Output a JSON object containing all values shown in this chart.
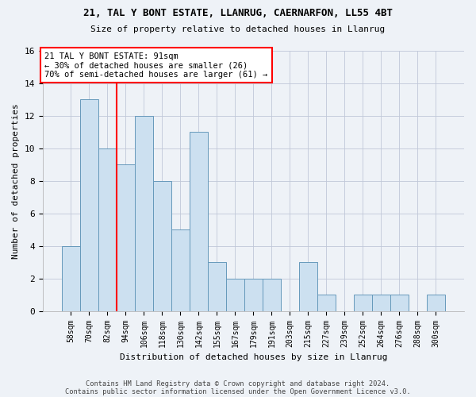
{
  "title1": "21, TAL Y BONT ESTATE, LLANRUG, CAERNARFON, LL55 4BT",
  "title2": "Size of property relative to detached houses in Llanrug",
  "xlabel": "Distribution of detached houses by size in Llanrug",
  "ylabel": "Number of detached properties",
  "bin_labels": [
    "58sqm",
    "70sqm",
    "82sqm",
    "94sqm",
    "106sqm",
    "118sqm",
    "130sqm",
    "142sqm",
    "155sqm",
    "167sqm",
    "179sqm",
    "191sqm",
    "203sqm",
    "215sqm",
    "227sqm",
    "239sqm",
    "252sqm",
    "264sqm",
    "276sqm",
    "288sqm",
    "300sqm"
  ],
  "values": [
    4,
    13,
    10,
    9,
    12,
    8,
    5,
    11,
    3,
    2,
    2,
    2,
    0,
    3,
    1,
    0,
    1,
    1,
    1,
    0,
    1
  ],
  "bar_color": "#cce0f0",
  "bar_edge_color": "#6699bb",
  "vline_x": 2.5,
  "vline_color": "red",
  "annotation_line1": "21 TAL Y BONT ESTATE: 91sqm",
  "annotation_line2": "← 30% of detached houses are smaller (26)",
  "annotation_line3": "70% of semi-detached houses are larger (61) →",
  "annotation_box_color": "red",
  "ylim": [
    0,
    16
  ],
  "yticks": [
    0,
    2,
    4,
    6,
    8,
    10,
    12,
    14,
    16
  ],
  "footer1": "Contains HM Land Registry data © Crown copyright and database right 2024.",
  "footer2": "Contains public sector information licensed under the Open Government Licence v3.0.",
  "bg_color": "#eef2f7",
  "plot_bg_color": "#eef2f7",
  "grid_color": "#c0c8d8"
}
